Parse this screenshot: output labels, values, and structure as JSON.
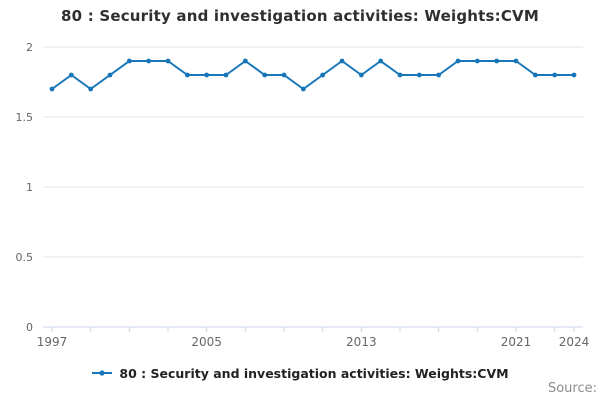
{
  "title": "80 : Security and investigation activities: Weights:CVM",
  "legend": {
    "label": "80 : Security and investigation activities: Weights:CVM"
  },
  "source": {
    "label": "Source:"
  },
  "colors": {
    "line": "#1776b8",
    "grid": "#e6e6e6",
    "axis": "#ccd6eb",
    "axis_label": "#666666",
    "title_text": "#2f2f2f",
    "legend_text": "#222222",
    "source_text": "#8c8c8c"
  },
  "chart_data": {
    "type": "line",
    "title": "80 : Security and investigation activities: Weights:CVM",
    "xlabel": "",
    "ylabel": "",
    "x": [
      1997,
      1998,
      1999,
      2000,
      2001,
      2002,
      2003,
      2004,
      2005,
      2006,
      2007,
      2008,
      2009,
      2010,
      2011,
      2012,
      2013,
      2014,
      2015,
      2016,
      2017,
      2018,
      2019,
      2020,
      2021,
      2022,
      2023,
      2024
    ],
    "values": [
      1.7,
      1.8,
      1.7,
      1.8,
      1.9,
      1.9,
      1.9,
      1.8,
      1.8,
      1.8,
      1.9,
      1.8,
      1.8,
      1.7,
      1.8,
      1.9,
      1.8,
      1.9,
      1.8,
      1.8,
      1.8,
      1.9,
      1.9,
      1.9,
      1.9,
      1.8,
      1.8,
      1.8
    ],
    "series_name": "80 : Security and investigation activities: Weights:CVM",
    "xlim": [
      1997,
      2024
    ],
    "ylim": [
      0,
      2
    ],
    "yticks": [
      0,
      0.5,
      1,
      1.5,
      2
    ],
    "ytick_labels": [
      "0",
      "0.5",
      "1",
      "1.5",
      "2"
    ],
    "xticks": [
      1997,
      1999,
      2001,
      2003,
      2005,
      2007,
      2009,
      2011,
      2013,
      2015,
      2017,
      2019,
      2021,
      2023,
      2024
    ],
    "xtick_label_years": [
      1997,
      2005,
      2013,
      2021,
      2024
    ],
    "grid": "horizontal",
    "legend_position": "bottom",
    "marker": "circle"
  }
}
